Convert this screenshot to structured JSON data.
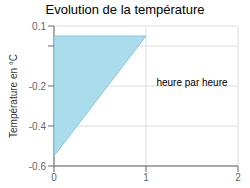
{
  "chart_data": {
    "type": "polygon",
    "title": "Evolution de la température",
    "y_label": "Température en °C",
    "annotations": [
      {
        "text": "heure par heure",
        "x": 1.5,
        "y": -0.18
      }
    ],
    "x": [
      0,
      0,
      1
    ],
    "values": [
      0.05,
      -0.55,
      0.05
    ],
    "color": "#aadcec",
    "xlim": [
      0,
      2
    ],
    "ylim": [
      -0.6,
      0.1
    ],
    "xticks": [
      0,
      1,
      2
    ],
    "yticks": [
      -0.6,
      -0.4,
      -0.2,
      {
        "value": 0,
        "label": ""
      },
      0.1
    ],
    "grid": true
  }
}
